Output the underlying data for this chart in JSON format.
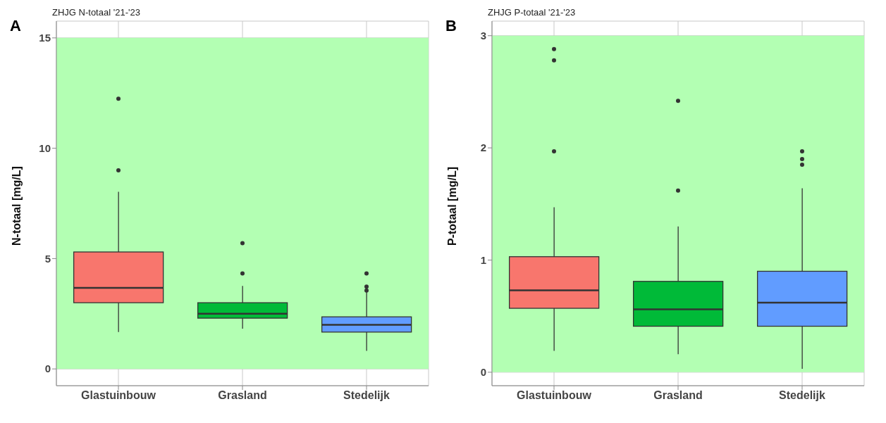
{
  "chart_data": [
    {
      "type": "box",
      "title": "ZHJG N-totaal '21-'23",
      "annotations": [
        "A"
      ],
      "ylabel": "N-totaal [mg/L]",
      "categories": [
        "Glastuinbouw",
        "Grasland",
        "Stedelijk"
      ],
      "colors": [
        "#f8766d",
        "#00ba38",
        "#619cff"
      ],
      "boxes": [
        {
          "low": 1.67,
          "q1": 3.0,
          "median": 3.67,
          "q3": 5.3,
          "high": 8.03,
          "outliers": [
            12.24,
            9.0
          ]
        },
        {
          "low": 1.82,
          "q1": 2.3,
          "median": 2.5,
          "q3": 3.0,
          "high": 3.76,
          "outliers": [
            5.7,
            4.33
          ]
        },
        {
          "low": 0.82,
          "q1": 1.67,
          "median": 2.0,
          "q3": 2.36,
          "high": 3.48,
          "outliers": [
            4.33,
            3.73,
            3.55
          ]
        }
      ],
      "ylim": [
        -0.76,
        15.76
      ],
      "yticks": [
        0,
        5,
        10,
        15
      ],
      "grid": true,
      "bands": [
        {
          "axis": "y",
          "from": 0,
          "to": 15,
          "color": "#b3ffb3"
        }
      ]
    },
    {
      "type": "box",
      "title": "ZHJG P-totaal '21-'23",
      "annotations": [
        "B"
      ],
      "ylabel": "P-totaal [mg/L]",
      "categories": [
        "Glastuinbouw",
        "Grasland",
        "Stedelijk"
      ],
      "colors": [
        "#f8766d",
        "#00ba38",
        "#619cff"
      ],
      "boxes": [
        {
          "low": 0.19,
          "q1": 0.57,
          "median": 0.73,
          "q3": 1.03,
          "high": 1.47,
          "outliers": [
            2.88,
            2.78,
            1.97
          ]
        },
        {
          "low": 0.16,
          "q1": 0.41,
          "median": 0.56,
          "q3": 0.81,
          "high": 1.3,
          "outliers": [
            2.42,
            1.62
          ]
        },
        {
          "low": 0.03,
          "q1": 0.41,
          "median": 0.62,
          "q3": 0.9,
          "high": 1.64,
          "outliers": [
            1.97,
            1.9,
            1.85
          ]
        }
      ],
      "ylim": [
        -0.12,
        3.13
      ],
      "yticks": [
        0,
        1,
        2,
        3
      ],
      "grid": true,
      "bands": [
        {
          "axis": "y",
          "from": 0,
          "to": 3,
          "color": "#b3ffb3"
        }
      ]
    }
  ]
}
